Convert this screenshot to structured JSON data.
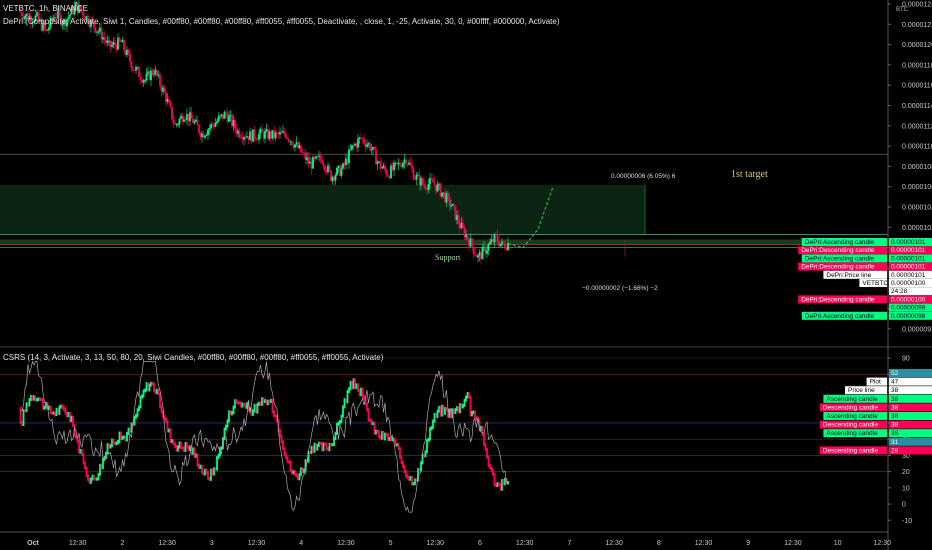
{
  "header": {
    "symbol": "VETBTC, 1h, BINANCE",
    "indicator1": "DePri (Composite, Activate, Siwi 1, Candles, #00ff80, #00ff80, #00ff80, #ff0055, #ff0055, Deactivate, , close, 1, -25, Activate, 30, 0, #00ffff, #000000, Activate)",
    "indicator2": "CSRS (14, 3, Activate, 3, 13, 50, 80, 20, Siwi Candles, #00ff80, #00ff80, #00ff80, #ff0055, #ff0055, Activate)",
    "currency": "BTC"
  },
  "annotations": {
    "support": "Support",
    "target": "1st target",
    "measure_up": "0.00000006 (6.05%) 6",
    "measure_down": "−0.00000002 (−1.66%) −2"
  },
  "colors": {
    "up": "#00ff80",
    "down": "#ff0055",
    "bg": "#000000",
    "osc_line": "#aaaaaa"
  },
  "chart_data": [
    {
      "type": "candlestick",
      "x_ticks": [
        "Oct",
        "12:30",
        "2",
        "12:30",
        "3",
        "12:30",
        "4",
        "12:30",
        "5",
        "12:30",
        "6",
        "12:30",
        "7",
        "12:30",
        "8",
        "12:30",
        "9",
        "12:30",
        "10",
        "12:30"
      ],
      "y_ticks": [
        "0.0000124",
        "0.0000122",
        "0.0000120",
        "0.0000118",
        "0.0000116",
        "0.0000114",
        "0.0000112",
        "0.0000110",
        "0.0000108",
        "0.0000106",
        "0.0000104",
        "0.0000102",
        "0.0000100",
        "0.0000098",
        "0.0000096",
        "0.0000094",
        "0.0000092"
      ],
      "ylim": [
        9.1e-06,
        1.24e-05
      ],
      "price_path": [
        [
          0,
          1.232e-05
        ],
        [
          6,
          1.228e-05
        ],
        [
          12,
          1.226e-05
        ],
        [
          18,
          1.212e-05
        ],
        [
          24,
          1.23e-05
        ],
        [
          30,
          1.222e-05
        ],
        [
          38,
          1.238e-05
        ],
        [
          46,
          1.225e-05
        ],
        [
          54,
          1.212e-05
        ],
        [
          60,
          1.198e-05
        ],
        [
          68,
          1.202e-05
        ],
        [
          76,
          1.178e-05
        ],
        [
          84,
          1.165e-05
        ],
        [
          90,
          1.175e-05
        ],
        [
          98,
          1.148e-05
        ],
        [
          104,
          1.12e-05
        ],
        [
          110,
          1.132e-05
        ],
        [
          116,
          1.125e-05
        ],
        [
          122,
          1.112e-05
        ],
        [
          130,
          1.122e-05
        ],
        [
          138,
          1.132e-05
        ],
        [
          146,
          1.114e-05
        ],
        [
          154,
          1.11e-05
        ],
        [
          162,
          1.112e-05
        ],
        [
          170,
          1.11e-05
        ],
        [
          178,
          1.112e-05
        ],
        [
          186,
          1.098e-05
        ],
        [
          194,
          1.082e-05
        ],
        [
          202,
          1.088e-05
        ],
        [
          208,
          1.07e-05
        ],
        [
          216,
          1.078e-05
        ],
        [
          222,
          1.098e-05
        ],
        [
          228,
          1.108e-05
        ],
        [
          234,
          1.1e-05
        ],
        [
          240,
          1.082e-05
        ],
        [
          246,
          1.073e-05
        ],
        [
          252,
          1.08e-05
        ],
        [
          258,
          1.088e-05
        ],
        [
          264,
          1.07e-05
        ],
        [
          270,
          1.062e-05
        ],
        [
          276,
          1.064e-05
        ],
        [
          282,
          1.054e-05
        ],
        [
          288,
          1.042e-05
        ],
        [
          294,
          1.022e-05
        ],
        [
          300,
          1.007e-05
        ],
        [
          306,
          9.9e-06
        ],
        [
          312,
          1e-05
        ],
        [
          318,
          1.01e-05
        ],
        [
          322,
          1.002e-05
        ],
        [
          326,
          1.004e-05
        ]
      ],
      "projection": [
        [
          326,
          1.004e-05
        ],
        [
          336,
          1e-05
        ],
        [
          346,
          1.018e-05
        ],
        [
          356,
          1.06e-05
        ]
      ],
      "levels": {
        "support_band": [
          1.003e-05,
          1.008e-05
        ],
        "support_lines": [
          1.013e-05,
          1.003e-05,
          1e-05
        ],
        "upper_line": 1.092e-05,
        "target_zone": [
          1.013e-05,
          1.062e-05
        ]
      },
      "price_tags": [
        {
          "label": "DePri:Ascending candle",
          "value": "0.00000101",
          "kind": "up"
        },
        {
          "label": "DePri:Descending candle",
          "value": "0.00000101",
          "kind": "down"
        },
        {
          "label": "DePri:Ascending candle",
          "value": "0.00000101",
          "kind": "up"
        },
        {
          "label": "DePri:Descending candle",
          "value": "0.00000101",
          "kind": "down"
        },
        {
          "label": "DePri:Price line",
          "value": "0.00000101",
          "kind": "white"
        },
        {
          "label": "VETBTC",
          "value": "0.00000100",
          "kind": "white"
        },
        {
          "label": "",
          "value": "24:28",
          "kind": "white"
        },
        {
          "label": "DePri:Descending candle",
          "value": "0.00000100",
          "kind": "down"
        },
        {
          "label": "",
          "value": "0.00000099",
          "kind": "up"
        },
        {
          "label": "DePri:Ascending candle",
          "value": "0.00000098",
          "kind": "up"
        }
      ]
    },
    {
      "type": "oscillator",
      "y_ticks": [
        "90",
        "80",
        "70",
        "60",
        "50",
        "40",
        "30",
        "20",
        "10",
        "0",
        "-10"
      ],
      "ylim": [
        -16,
        95
      ],
      "levels": [
        80,
        50,
        20
      ],
      "tags": [
        {
          "label": "",
          "value": "52",
          "kind": "cyan"
        },
        {
          "label": "Plot",
          "value": "47",
          "kind": "white"
        },
        {
          "label": "Price line",
          "value": "38",
          "kind": "white"
        },
        {
          "label": "Ascending candle",
          "value": "38",
          "kind": "up"
        },
        {
          "label": "Descending candle",
          "value": "38",
          "kind": "down"
        },
        {
          "label": "Ascending candle",
          "value": "38",
          "kind": "up"
        },
        {
          "label": "Descending candle",
          "value": "38",
          "kind": "down"
        },
        {
          "label": "Ascending candle",
          "value": "38",
          "kind": "up"
        },
        {
          "label": "",
          "value": "31",
          "kind": "cyan"
        },
        {
          "label": "Descending candle",
          "value": "28",
          "kind": "down"
        }
      ]
    }
  ]
}
